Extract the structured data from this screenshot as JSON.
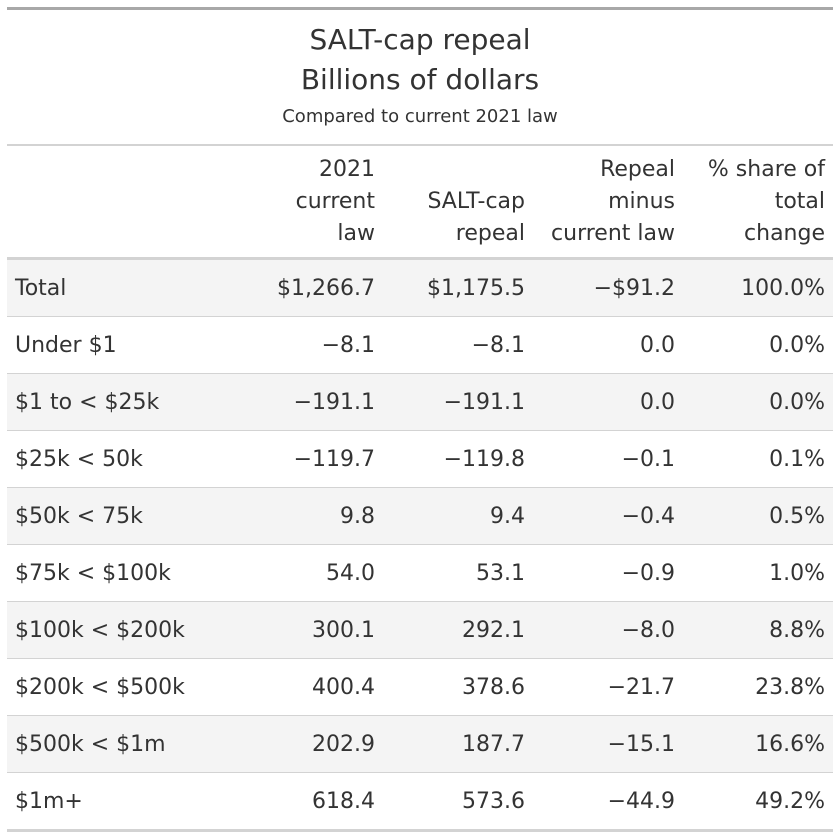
{
  "header": {
    "title_line1": "SALT-cap repeal",
    "title_line2": "Billions of dollars",
    "subtitle": "Compared to current 2021 law"
  },
  "columns": [
    {
      "line1": "",
      "line2": "",
      "line3": ""
    },
    {
      "line1": "",
      "line2": "2021 current",
      "line3": "law"
    },
    {
      "line1": "",
      "line2": "SALT-cap",
      "line3": "repeal"
    },
    {
      "line1": "Repeal",
      "line2": "minus",
      "line3": "current law"
    },
    {
      "line1": "",
      "line2": "% share of",
      "line3": "total change"
    }
  ],
  "rows": [
    {
      "label": "Total",
      "current": "$1,266.7",
      "repeal": "$1,175.5",
      "diff": "−$91.2",
      "share": "100.0%"
    },
    {
      "label": "Under $1",
      "current": "−8.1",
      "repeal": "−8.1",
      "diff": "0.0",
      "share": "0.0%"
    },
    {
      "label": "$1 to < $25k",
      "current": "−191.1",
      "repeal": "−191.1",
      "diff": "0.0",
      "share": "0.0%"
    },
    {
      "label": "$25k < 50k",
      "current": "−119.7",
      "repeal": "−119.8",
      "diff": "−0.1",
      "share": "0.1%"
    },
    {
      "label": "$50k < 75k",
      "current": "9.8",
      "repeal": "9.4",
      "diff": "−0.4",
      "share": "0.5%"
    },
    {
      "label": "$75k < $100k",
      "current": "54.0",
      "repeal": "53.1",
      "diff": "−0.9",
      "share": "1.0%"
    },
    {
      "label": "$100k < $200k",
      "current": "300.1",
      "repeal": "292.1",
      "diff": "−8.0",
      "share": "8.8%"
    },
    {
      "label": "$200k < $500k",
      "current": "400.4",
      "repeal": "378.6",
      "diff": "−21.7",
      "share": "23.8%"
    },
    {
      "label": "$500k < $1m",
      "current": "202.9",
      "repeal": "187.7",
      "diff": "−15.1",
      "share": "16.6%"
    },
    {
      "label": "$1m+",
      "current": "618.4",
      "repeal": "573.6",
      "diff": "−44.9",
      "share": "49.2%"
    }
  ],
  "colors": {
    "text": "#333333",
    "rule": "#d3d3d3",
    "top_rule": "#a8a8a8",
    "stripe": "#f4f4f4"
  }
}
